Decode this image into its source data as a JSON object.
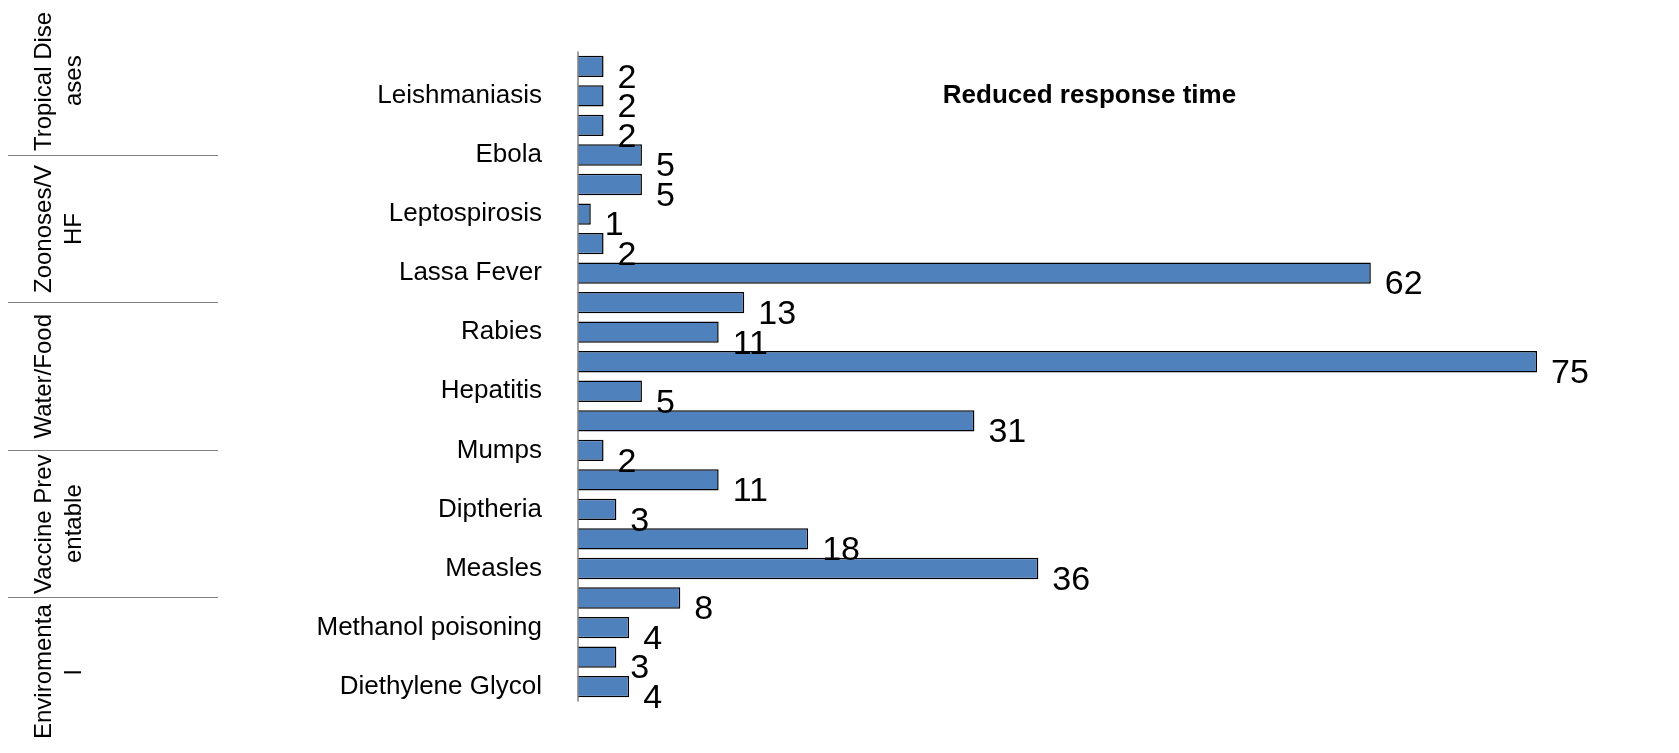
{
  "chart_data": {
    "type": "bar",
    "orientation": "horizontal",
    "title": "Reduced response time",
    "categories": [
      null,
      "Leishmaniasis",
      null,
      "Ebola",
      null,
      "Leptospirosis",
      null,
      "Lassa Fever",
      null,
      "Rabies",
      null,
      "Hepatitis",
      null,
      "Mumps",
      null,
      "Diptheria",
      null,
      "Measles",
      null,
      "Methanol poisoning",
      null,
      "Diethylene Glycol"
    ],
    "values": [
      2,
      2,
      2,
      5,
      5,
      1,
      2,
      62,
      13,
      11,
      75,
      5,
      31,
      2,
      11,
      3,
      18,
      36,
      8,
      4,
      3,
      4
    ],
    "color": "#4f81bd",
    "data_labels": true,
    "legend": false,
    "annotations": [
      "Tropical Diseases",
      "Zoonoses/VHF",
      "Water/Food",
      "Vaccine Preventable",
      "Enviromental"
    ]
  }
}
